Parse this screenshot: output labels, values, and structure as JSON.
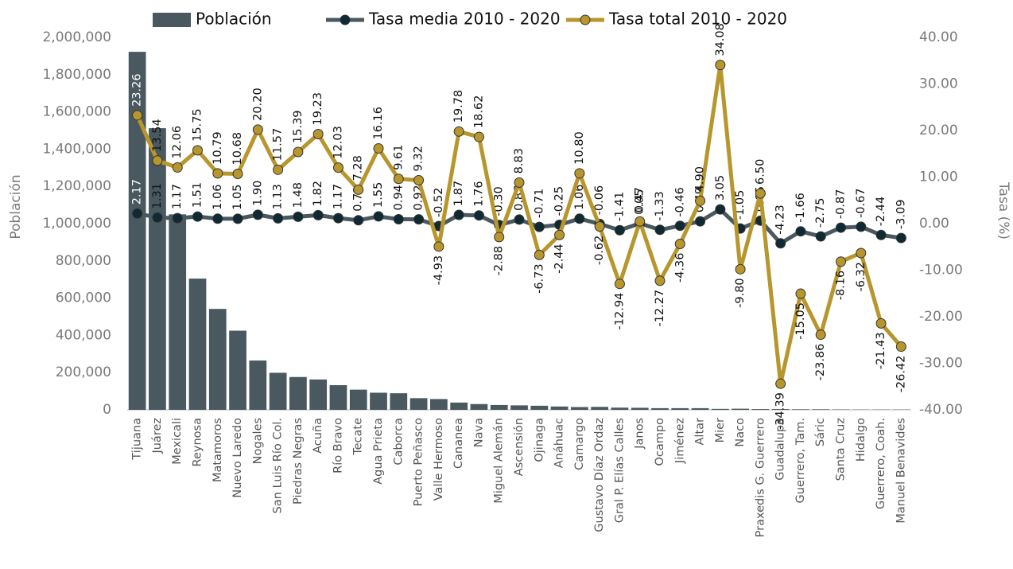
{
  "chart_data": {
    "type": "combo",
    "ylabel": "Población",
    "y2label": "Tasa (%)",
    "categories": [
      "Tijuana",
      "Juárez",
      "Mexicali",
      "Reynosa",
      "Matamoros",
      "Nuevo Laredo",
      "Nogales",
      "San Luis Río Col.",
      "Piedras Negras",
      "Acuña",
      "Río Bravo",
      "Tecate",
      "Agua Prieta",
      "Caborca",
      "Puerto Peñasco",
      "Valle Hermoso",
      "Cananea",
      "Nava",
      "Miguel Alemán",
      "Ascensión",
      "Ojinaga",
      "Anáhuac",
      "Camargo",
      "Gustavo Díaz Ordaz",
      "Gral P. Elías Calles",
      "Janos",
      "Ocampo",
      "Jiménez",
      "Altar",
      "Mier",
      "Naco",
      "Praxedis G. Guerrero",
      "Guadalupe",
      "Guerrero, Tam.",
      "Sáric",
      "Santa Cruz",
      "Hidalgo",
      "Guerrero, Coah.",
      "Manuel Benavides"
    ],
    "series": [
      {
        "name": "Población",
        "type": "bar",
        "color": "#4a5860",
        "values": [
          1922523,
          1512450,
          1049792,
          704767,
          541979,
          425058,
          264782,
          199021,
          176327,
          163058,
          132484,
          108440,
          91929,
          89122,
          62689,
          58000,
          39000,
          31000,
          26000,
          24000,
          22000,
          18000,
          15000,
          16000,
          12000,
          11000,
          9000,
          9000,
          9000,
          5000,
          6000,
          4000,
          4000,
          3000,
          3000,
          2000,
          1500,
          1500,
          1500
        ]
      },
      {
        "name": "Tasa media 2010 - 2020",
        "type": "line",
        "axis": "y2",
        "color": "#4a5860",
        "marker_color": "#0f2a33",
        "values": [
          2.17,
          1.31,
          1.17,
          1.51,
          1.06,
          1.05,
          1.9,
          1.13,
          1.48,
          1.82,
          1.17,
          0.72,
          1.55,
          0.94,
          0.92,
          -0.52,
          1.87,
          1.76,
          -0.3,
          0.87,
          -0.71,
          -0.25,
          1.06,
          -0.06,
          -1.41,
          0.05,
          -1.33,
          -0.46,
          0.49,
          3.05,
          -1.05,
          0.65,
          -4.23,
          -1.66,
          -2.75,
          -0.87,
          -0.67,
          -2.44,
          -3.09
        ],
        "value_labels": [
          "2.17",
          "1.31",
          "1.17",
          "1.51",
          "1.06",
          "1.05",
          "1.90",
          "1.13",
          "1.48",
          "1.82",
          "1.17",
          "0.72",
          "1.55",
          "0.94",
          "0.92",
          "-0.52",
          "1.87",
          "1.76",
          "-0.30",
          "0.87",
          "-0.71",
          "-0.25",
          "1.06",
          "-0.06",
          "-1.41",
          "0.05",
          "-1.33",
          "-0.46",
          "0.49",
          "3.05",
          "-1.05",
          "0.65",
          "-4.23",
          "-1.66",
          "-2.75",
          "-0.87",
          "-0.67",
          "-2.44",
          "-3.09"
        ]
      },
      {
        "name": "Tasa total 2010 - 2020",
        "type": "line",
        "axis": "y2",
        "color": "#b8962e",
        "marker_color": "#b8962e",
        "values": [
          23.26,
          13.54,
          12.06,
          15.75,
          10.79,
          10.68,
          20.2,
          11.57,
          15.39,
          19.23,
          12.03,
          7.28,
          16.16,
          9.61,
          9.32,
          -4.93,
          19.78,
          18.62,
          -2.88,
          8.83,
          -6.73,
          -2.44,
          10.8,
          -0.62,
          -12.94,
          0.47,
          -12.27,
          -4.36,
          4.9,
          34.08,
          -9.8,
          6.5,
          -34.39,
          -15.05,
          -23.86,
          -8.16,
          -6.32,
          -21.43,
          -26.42
        ],
        "value_labels": [
          "23.26",
          "13.54",
          "12.06",
          "15.75",
          "10.79",
          "10.68",
          "20.20",
          "11.57",
          "15.39",
          "19.23",
          "12.03",
          "7.28",
          "16.16",
          "9.61",
          "9.32",
          "-4.93",
          "19.78",
          "18.62",
          "-2.88",
          "8.83",
          "-6.73",
          "-2.44",
          "10.80",
          "-0.62",
          "-12.94",
          "0.47",
          "-12.27",
          "-4.36",
          "4.90",
          "34.08",
          "-9.80",
          "6.50",
          "-34.39",
          "-15.05",
          "-23.86",
          "-8.16",
          "-6.32",
          "-21.43",
          "-26.42"
        ]
      }
    ],
    "ylim": [
      0,
      2000000
    ],
    "yticks": [
      0,
      {
        "value": 200000,
        "label": "200,000"
      },
      {
        "value": 400000,
        "label": "400,000"
      },
      {
        "value": 600000,
        "label": "600,000"
      },
      {
        "value": 800000,
        "label": "800,000"
      },
      {
        "value": 1000000,
        "label": "1,000,000"
      },
      {
        "value": 1200000,
        "label": "1,200,000"
      },
      {
        "value": 1400000,
        "label": "1,400,000"
      },
      {
        "value": 1600000,
        "label": "1,600,000"
      },
      {
        "value": 1800000,
        "label": "1,800,000"
      },
      {
        "value": 2000000,
        "label": "2,000,000"
      }
    ],
    "y2lim": [
      -40,
      40
    ],
    "y2ticks": [
      {
        "value": -40,
        "label": "-40.00"
      },
      {
        "value": -30,
        "label": "-30.00"
      },
      {
        "value": -20,
        "label": "-20.00"
      },
      {
        "value": -10,
        "label": "-10.00"
      },
      {
        "value": 0,
        "label": "0.00"
      },
      {
        "value": 10,
        "label": "10.00"
      },
      {
        "value": 20,
        "label": "20.00"
      },
      {
        "value": 30,
        "label": "30.00"
      },
      {
        "value": 40,
        "label": "40.00"
      }
    ],
    "legend": "top"
  }
}
